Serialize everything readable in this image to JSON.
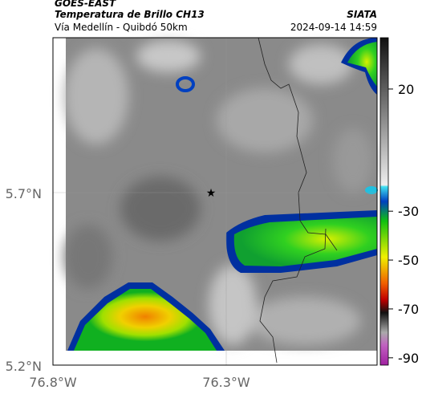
{
  "header": {
    "title": "GOES-EAST",
    "subtitle": "Temperatura de Brillo CH13",
    "region": "Vía Medellín - Quibdó 50km",
    "source": "SIATA",
    "timestamp": "2024-09-14 14:59"
  },
  "map": {
    "lat_ticks": [
      "5.7°N",
      "5.2°N"
    ],
    "lon_ticks": [
      "76.8°W",
      "76.3°W"
    ]
  },
  "colorbar": {
    "range": [
      41,
      -93
    ],
    "ticks": [
      20,
      -30,
      -50,
      -70,
      -90
    ]
  }
}
